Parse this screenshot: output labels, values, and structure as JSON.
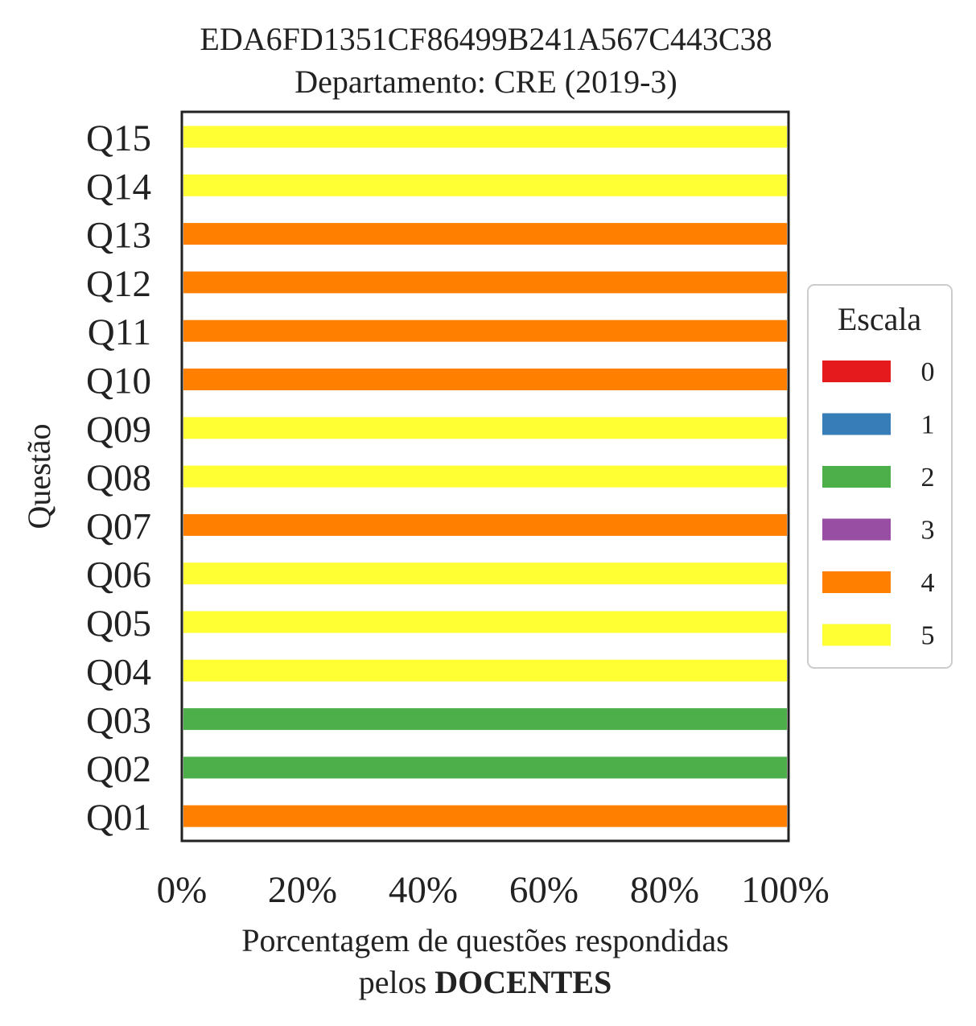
{
  "chart_data": {
    "type": "bar",
    "orientation": "horizontal",
    "stacked": true,
    "title": "EDA6FD1351CF86499B241A567C443C38",
    "subtitle": "Departamento: CRE (2019-3)",
    "ylabel": "Questão",
    "xlabel_line1": "Porcentagem de questões respondidas",
    "xlabel_line2_prefix": "pelos ",
    "xlabel_line2_bold": "DOCENTES",
    "xlim": [
      0,
      100
    ],
    "xticks": [
      "0%",
      "20%",
      "40%",
      "60%",
      "80%",
      "100%"
    ],
    "grid": false,
    "legend": {
      "title": "Escala",
      "placement": "center-right outside",
      "entries": [
        {
          "label": "0",
          "color": "#e41a1c"
        },
        {
          "label": "1",
          "color": "#377eb8"
        },
        {
          "label": "2",
          "color": "#4daf4a"
        },
        {
          "label": "3",
          "color": "#984ea3"
        },
        {
          "label": "4",
          "color": "#ff7f00"
        },
        {
          "label": "5",
          "color": "#ffff33"
        }
      ]
    },
    "categories": [
      "Q01",
      "Q02",
      "Q03",
      "Q04",
      "Q05",
      "Q06",
      "Q07",
      "Q08",
      "Q09",
      "Q10",
      "Q11",
      "Q12",
      "Q13",
      "Q14",
      "Q15"
    ],
    "series": [
      {
        "name": "0",
        "color": "#e41a1c",
        "values": [
          0,
          0,
          0,
          0,
          0,
          0,
          0,
          0,
          0,
          0,
          0,
          0,
          0,
          0,
          0
        ]
      },
      {
        "name": "1",
        "color": "#377eb8",
        "values": [
          0,
          0,
          0,
          0,
          0,
          0,
          0,
          0,
          0,
          0,
          0,
          0,
          0,
          0,
          0
        ]
      },
      {
        "name": "2",
        "color": "#4daf4a",
        "values": [
          0,
          100,
          100,
          0,
          0,
          0,
          0,
          0,
          0,
          0,
          0,
          0,
          0,
          0,
          0
        ]
      },
      {
        "name": "3",
        "color": "#984ea3",
        "values": [
          0,
          0,
          0,
          0,
          0,
          0,
          0,
          0,
          0,
          0,
          0,
          0,
          0,
          0,
          0
        ]
      },
      {
        "name": "4",
        "color": "#ff7f00",
        "values": [
          100,
          0,
          0,
          0,
          0,
          0,
          100,
          0,
          0,
          100,
          100,
          100,
          100,
          0,
          0
        ]
      },
      {
        "name": "5",
        "color": "#ffff33",
        "values": [
          0,
          0,
          0,
          100,
          100,
          100,
          0,
          100,
          100,
          0,
          0,
          0,
          0,
          100,
          100
        ]
      }
    ]
  }
}
